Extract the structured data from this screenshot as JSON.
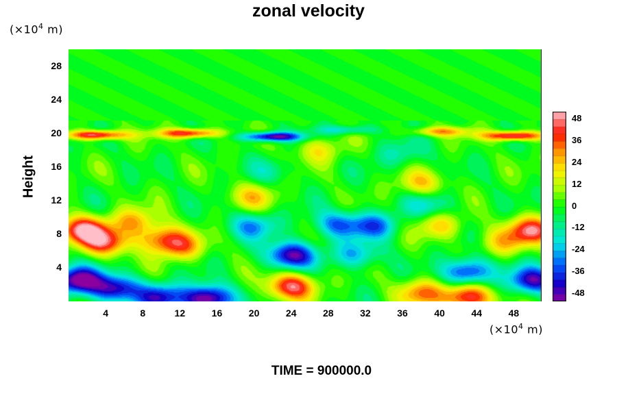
{
  "chart_data": {
    "type": "heatmap",
    "title": "zonal velocity",
    "xlabel": "",
    "ylabel": "Height",
    "x_unit": "(×10⁴ m)",
    "y_unit": "(×10⁴ m)",
    "x_unit_text": "(×10",
    "x_unit_exp": "4",
    "x_unit_tail": " m)",
    "y_unit_text": "(×10",
    "y_unit_exp": "4",
    "y_unit_tail": " m)",
    "xlim": [
      0,
      51
    ],
    "ylim": [
      0,
      30
    ],
    "xticks": [
      "4",
      "8",
      "12",
      "16",
      "20",
      "24",
      "28",
      "32",
      "36",
      "40",
      "44",
      "48"
    ],
    "yticks": [
      "4",
      "8",
      "12",
      "16",
      "20",
      "24",
      "28"
    ],
    "colorbar": {
      "range": [
        -52,
        52
      ],
      "ticks": [
        "48",
        "36",
        "24",
        "12",
        "0",
        "-12",
        "-24",
        "-36",
        "-48"
      ]
    },
    "annotation": "TIME = 900000.0",
    "features": [
      {
        "x": 3,
        "y": 19.8,
        "value": 50
      },
      {
        "x": 13,
        "y": 20.0,
        "value": 45
      },
      {
        "x": 22,
        "y": 19.6,
        "value": -52
      },
      {
        "x": 30,
        "y": 20.4,
        "value": -20
      },
      {
        "x": 48,
        "y": 19.7,
        "value": 52
      },
      {
        "x": 40,
        "y": 20.2,
        "value": 28
      },
      {
        "x": 1.5,
        "y": 8.5,
        "value": 48
      },
      {
        "x": 4,
        "y": 7,
        "value": 38
      },
      {
        "x": 10,
        "y": 7.5,
        "value": 30
      },
      {
        "x": 12,
        "y": 6.5,
        "value": 28
      },
      {
        "x": 7,
        "y": 9.5,
        "value": 25
      },
      {
        "x": 50,
        "y": 8.5,
        "value": 42
      },
      {
        "x": 47,
        "y": 7,
        "value": 20
      },
      {
        "x": 1,
        "y": 2.5,
        "value": -55
      },
      {
        "x": 5,
        "y": 1.5,
        "value": -45
      },
      {
        "x": 15,
        "y": 0.3,
        "value": -58
      },
      {
        "x": 10,
        "y": 0.5,
        "value": -40
      },
      {
        "x": 24,
        "y": 5.5,
        "value": -48
      },
      {
        "x": 20,
        "y": 9.0,
        "value": -25
      },
      {
        "x": 29,
        "y": 9.2,
        "value": -28
      },
      {
        "x": 33,
        "y": 9.0,
        "value": -30
      },
      {
        "x": 31,
        "y": 5.5,
        "value": -24
      },
      {
        "x": 43,
        "y": 3.5,
        "value": -42
      },
      {
        "x": 50,
        "y": 2.5,
        "value": -45
      },
      {
        "x": 39,
        "y": 11.5,
        "value": -18
      },
      {
        "x": 24,
        "y": 1.8,
        "value": 45
      },
      {
        "x": 43,
        "y": 0.5,
        "value": 48
      },
      {
        "x": 38,
        "y": 1.0,
        "value": 30
      },
      {
        "x": 40,
        "y": 9.0,
        "value": 22
      },
      {
        "x": 20,
        "y": 12.5,
        "value": 20
      },
      {
        "x": 38,
        "y": 14,
        "value": 22
      },
      {
        "x": 27,
        "y": 18,
        "value": 18
      },
      {
        "x": 36,
        "y": 17.5,
        "value": -14
      },
      {
        "x": 22,
        "y": 15.5,
        "value": -10
      }
    ]
  }
}
